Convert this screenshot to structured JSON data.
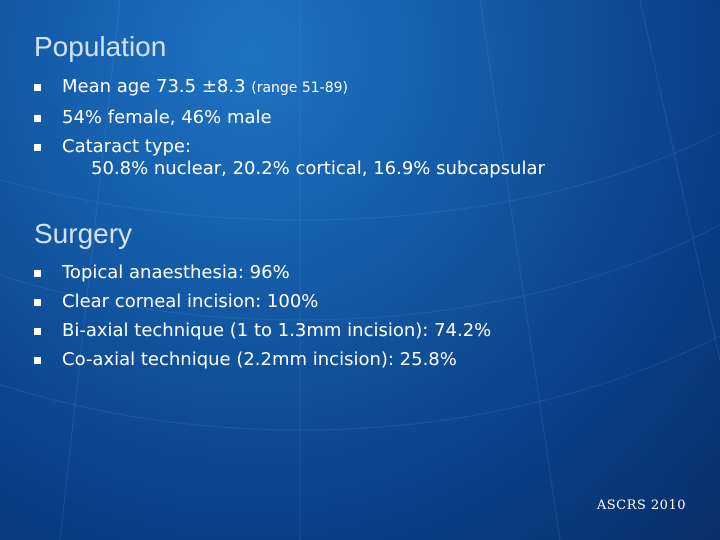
{
  "population": {
    "heading": "Population",
    "items": [
      {
        "text": "Mean age 73.5 ±8.3 ",
        "small": "(range 51-89)"
      },
      {
        "text": "54% female, 46% male"
      },
      {
        "text": "Cataract type:"
      }
    ],
    "continuation": "50.8% nuclear, 20.2% cortical, 16.9% subcapsular"
  },
  "surgery": {
    "heading": "Surgery",
    "items": [
      {
        "text": "Topical anaesthesia: 96%"
      },
      {
        "text": "Clear corneal incision: 100%"
      },
      {
        "text": "Bi-axial technique (1 to 1.3mm incision): 74.2%"
      },
      {
        "text": "Co-axial technique (2.2mm incision): 25.8%"
      }
    ]
  },
  "footer": "ASCRS 2010",
  "colors": {
    "background": "#145aa6",
    "heading": "#cfe3f7",
    "text": "#ffffff"
  }
}
